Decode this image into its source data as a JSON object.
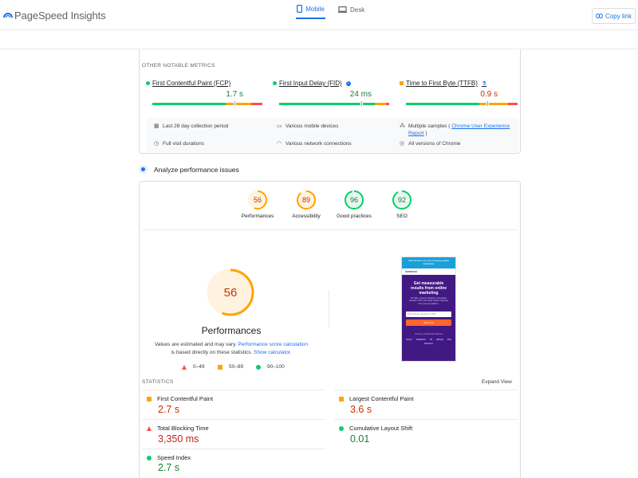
{
  "app": {
    "title": "PageSpeed Insights",
    "copy_link": "Copy link"
  },
  "tabs": [
    {
      "label": "Mobile",
      "active": true
    },
    {
      "label": "Desk",
      "active": false
    }
  ],
  "other_metrics": {
    "section_title": "OTHER NOTABLE METRICS",
    "items": [
      {
        "name": "First Contentful Paint (FCP)",
        "value": "1.7 s",
        "status": "good",
        "marker": 0.66
      },
      {
        "name": "First Input Delay (FID)",
        "value": "24 ms",
        "status": "good",
        "marker": 0.75
      },
      {
        "name": "Time to First Byte (TTFB)",
        "value": "0.9 s",
        "status": "average",
        "marker": 0.8
      }
    ],
    "info": [
      {
        "icon": "calendar-icon",
        "text": "Last 28 day collection period"
      },
      {
        "icon": "devices-icon",
        "text": "Various mobile devices"
      },
      {
        "icon": "samples-icon",
        "prefix": "Multiple samples ( ",
        "link": "Chrome User Experience Report",
        "suffix": " )"
      },
      {
        "icon": "timer-icon",
        "text": "Full visit durations"
      },
      {
        "icon": "wifi-icon",
        "text": "Various network connections"
      },
      {
        "icon": "chrome-icon",
        "text": "All versions of Chrome"
      }
    ]
  },
  "analyze": {
    "label": "Analyze performance issues"
  },
  "scores": [
    {
      "label": "Performances",
      "value": "56",
      "status": "average",
      "fraction": 0.56
    },
    {
      "label": "Accessibility",
      "value": "89",
      "status": "average",
      "fraction": 0.89
    },
    {
      "label": "Good practices",
      "value": "96",
      "status": "good",
      "fraction": 0.96
    },
    {
      "label": "SEO",
      "value": "92",
      "status": "good",
      "fraction": 0.92
    }
  ],
  "performance": {
    "score": "56",
    "fraction": 0.56,
    "title": "Performances",
    "desc_1": "Values are estimated and may vary. ",
    "desc_link_1": "Performance score calculation",
    "desc_2": " is based directly on these statistics. ",
    "desc_link_2": "Show calculator.",
    "legend": [
      {
        "shape": "triangle",
        "range": "0–49"
      },
      {
        "shape": "square",
        "range": "50–89"
      },
      {
        "shape": "circle",
        "range": "90–100"
      }
    ]
  },
  "screenshot": {
    "banner": "Stay ahead in an ever-changing digital landscape",
    "logo": "SEMRUSH",
    "headline": "Get measurable results from online marketing",
    "body": "Do SEO, content marketing, competitor research, PPC and social media marketing from just one platform.",
    "placeholder": "Enter domain, keyword or URL",
    "button": "Start now",
    "footer": "Trusted by 10,000,000 marketers",
    "brands": [
      "TESLA",
      "SAMSUNG",
      "HP",
      "Walmart",
      "P&G",
      "Salesforce"
    ]
  },
  "statistics": {
    "title": "STATISTICS",
    "expand": "Expand View",
    "items": [
      {
        "name": "First Contentful Paint",
        "value": "2.7 s",
        "status": "average"
      },
      {
        "name": "Largest Contentful Paint",
        "value": "3.6 s",
        "status": "average"
      },
      {
        "name": "Total Blocking Time",
        "value": "3,350 ms",
        "status": "poor"
      },
      {
        "name": "Cumulative Layout Shift",
        "value": "0.01",
        "status": "good"
      },
      {
        "name": "Speed Index",
        "value": "2.7 s",
        "status": "good"
      }
    ]
  },
  "colors": {
    "good": "#0cce6b",
    "average": "#ffa400",
    "poor": "#ff4e42",
    "accent": "#1a73e8"
  }
}
